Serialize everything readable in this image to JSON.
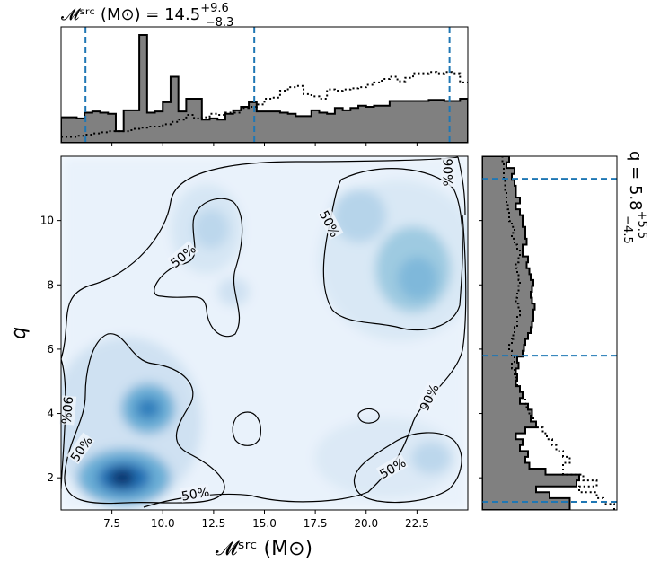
{
  "chart_data": {
    "type": "corner",
    "main": {
      "type": "heatmap",
      "xlabel": "𝓜ˢʳᶜ (M⊙)",
      "ylabel": "q",
      "xlim": [
        5.0,
        25.0
      ],
      "ylim": [
        1.0,
        12.0
      ],
      "xticks": [
        7.5,
        10.0,
        12.5,
        15.0,
        17.5,
        20.0,
        22.5
      ],
      "yticks": [
        2,
        4,
        6,
        8,
        10
      ],
      "colormap": "Blues",
      "density_peaks": [
        {
          "x": 8.0,
          "y": 2.0,
          "weight": 1.0
        },
        {
          "x": 9.0,
          "y": 4.2,
          "weight": 0.75
        },
        {
          "x": 22.5,
          "y": 8.5,
          "weight": 0.45
        },
        {
          "x": 12.5,
          "y": 10.0,
          "weight": 0.3
        },
        {
          "x": 20.5,
          "y": 10.5,
          "weight": 0.35
        },
        {
          "x": 23.0,
          "y": 2.5,
          "weight": 0.3
        }
      ],
      "contour_labels": [
        {
          "text": "50%",
          "x": 11.0,
          "y": 8.9,
          "rotation": -40
        },
        {
          "text": "50%",
          "x": 18.2,
          "y": 9.9,
          "rotation": 62
        },
        {
          "text": "50%",
          "x": 6.0,
          "y": 2.9,
          "rotation": -55
        },
        {
          "text": "50%",
          "x": 11.6,
          "y": 1.5,
          "rotation": -10
        },
        {
          "text": "50%",
          "x": 21.3,
          "y": 2.3,
          "rotation": -30
        },
        {
          "text": "90%",
          "x": 5.3,
          "y": 4.1,
          "rotation": 95
        },
        {
          "text": "90%",
          "x": 24.0,
          "y": 11.5,
          "rotation": 90
        },
        {
          "text": "90%",
          "x": 23.1,
          "y": 4.5,
          "rotation": -65
        }
      ]
    },
    "top": {
      "type": "histogram",
      "title": "𝓜ˢʳᶜ (M⊙) = 14.5",
      "median": 14.5,
      "plus": "+9.6",
      "minus": "−8.3",
      "quantile_lines": [
        6.2,
        14.5,
        24.1
      ],
      "bin_edges": [
        5.0,
        25.0
      ],
      "posterior": [
        0.22,
        0.22,
        0.21,
        0.26,
        0.27,
        0.26,
        0.25,
        0.1,
        0.28,
        0.28,
        0.93,
        0.26,
        0.27,
        0.35,
        0.57,
        0.27,
        0.38,
        0.38,
        0.2,
        0.21,
        0.2,
        0.25,
        0.28,
        0.31,
        0.35,
        0.27,
        0.27,
        0.27,
        0.26,
        0.25,
        0.23,
        0.23,
        0.28,
        0.26,
        0.25,
        0.3,
        0.28,
        0.3,
        0.32,
        0.31,
        0.32,
        0.32,
        0.36,
        0.36,
        0.36,
        0.36,
        0.36,
        0.37,
        0.37,
        0.36,
        0.36,
        0.38
      ],
      "prior": [
        0.05,
        0.05,
        0.06,
        0.07,
        0.08,
        0.09,
        0.1,
        0.1,
        0.1,
        0.12,
        0.13,
        0.14,
        0.14,
        0.16,
        0.18,
        0.2,
        0.24,
        0.21,
        0.22,
        0.25,
        0.24,
        0.26,
        0.26,
        0.3,
        0.31,
        0.33,
        0.38,
        0.39,
        0.45,
        0.48,
        0.49,
        0.42,
        0.4,
        0.38,
        0.46,
        0.45,
        0.46,
        0.47,
        0.48,
        0.5,
        0.52,
        0.55,
        0.57,
        0.53,
        0.56,
        0.6,
        0.6,
        0.61,
        0.6,
        0.61,
        0.6,
        0.52
      ]
    },
    "right": {
      "type": "histogram",
      "orientation": "horizontal",
      "title": "q = 5.8",
      "median": 5.8,
      "plus": "+5.5",
      "minus": "−4.5",
      "quantile_lines": [
        1.25,
        5.8,
        11.3
      ],
      "bin_edges": [
        1.0,
        12.0
      ],
      "posterior": [
        0.65,
        0.65,
        0.5,
        0.4,
        0.7,
        0.72,
        0.47,
        0.35,
        0.32,
        0.34,
        0.28,
        0.3,
        0.25,
        0.32,
        0.4,
        0.36,
        0.37,
        0.34,
        0.28,
        0.3,
        0.28,
        0.25,
        0.26,
        0.25,
        0.27,
        0.26,
        0.3,
        0.31,
        0.32,
        0.34,
        0.36,
        0.37,
        0.38,
        0.38,
        0.39,
        0.37,
        0.36,
        0.37,
        0.38,
        0.36,
        0.35,
        0.33,
        0.34,
        0.3,
        0.3,
        0.33,
        0.32,
        0.32,
        0.3,
        0.3,
        0.28,
        0.25,
        0.28,
        0.25,
        0.25,
        0.24,
        0.22,
        0.24,
        0.18,
        0.2
      ],
      "prior": [
        0.98,
        0.9,
        0.85,
        0.72,
        0.85,
        0.75,
        0.6,
        0.6,
        0.65,
        0.6,
        0.55,
        0.52,
        0.48,
        0.45,
        0.4,
        0.38,
        0.35,
        0.33,
        0.32,
        0.3,
        0.28,
        0.26,
        0.25,
        0.24,
        0.22,
        0.24,
        0.22,
        0.2,
        0.22,
        0.23,
        0.24,
        0.26,
        0.26,
        0.28,
        0.27,
        0.25,
        0.26,
        0.27,
        0.28,
        0.27,
        0.26,
        0.25,
        0.27,
        0.28,
        0.26,
        0.24,
        0.22,
        0.24,
        0.22,
        0.2,
        0.2,
        0.19,
        0.18,
        0.18,
        0.17,
        0.17,
        0.16,
        0.16,
        0.16,
        0.15
      ]
    }
  }
}
